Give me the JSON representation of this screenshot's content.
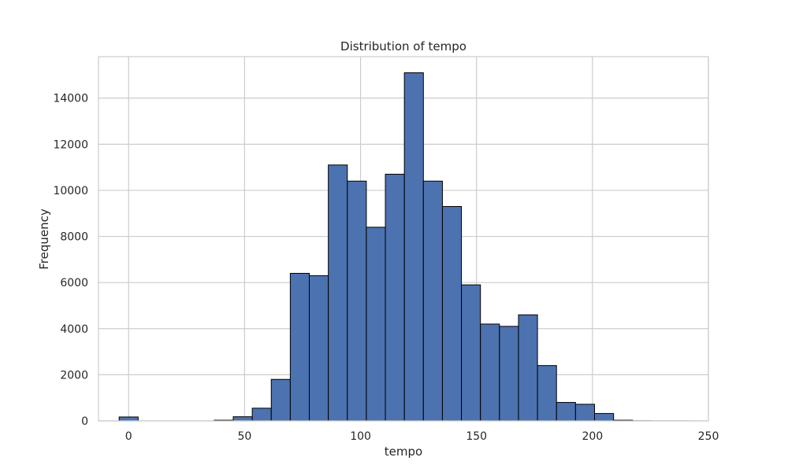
{
  "chart_data": {
    "type": "bar",
    "title": "Distribution of tempo",
    "xlabel": "tempo",
    "ylabel": "Frequency",
    "xlim": [
      -13,
      250
    ],
    "ylim": [
      0,
      15800
    ],
    "xticks": [
      0,
      50,
      100,
      150,
      200,
      250
    ],
    "yticks": [
      0,
      2000,
      4000,
      6000,
      8000,
      10000,
      12000,
      14000
    ],
    "grid": true,
    "legend": "none",
    "bin_width": 8.2,
    "bin_starts": [
      -4.1,
      4.1,
      12.3,
      20.5,
      28.7,
      36.9,
      45.1,
      53.3,
      61.5,
      69.7,
      77.9,
      86.1,
      94.3,
      102.5,
      110.7,
      118.9,
      127.1,
      135.3,
      143.5,
      151.7,
      159.9,
      168.1,
      176.3,
      184.5,
      192.7,
      200.9,
      209.1,
      217.3,
      225.5,
      233.7
    ],
    "values": [
      170,
      0,
      0,
      0,
      0,
      30,
      180,
      550,
      1800,
      6400,
      6300,
      11100,
      10400,
      8400,
      10700,
      15100,
      10400,
      9300,
      5900,
      4200,
      4100,
      4600,
      2400,
      800,
      720,
      320,
      30,
      5,
      2,
      2
    ],
    "bar_color": "#4c72b0",
    "edge_color": "#000000"
  }
}
